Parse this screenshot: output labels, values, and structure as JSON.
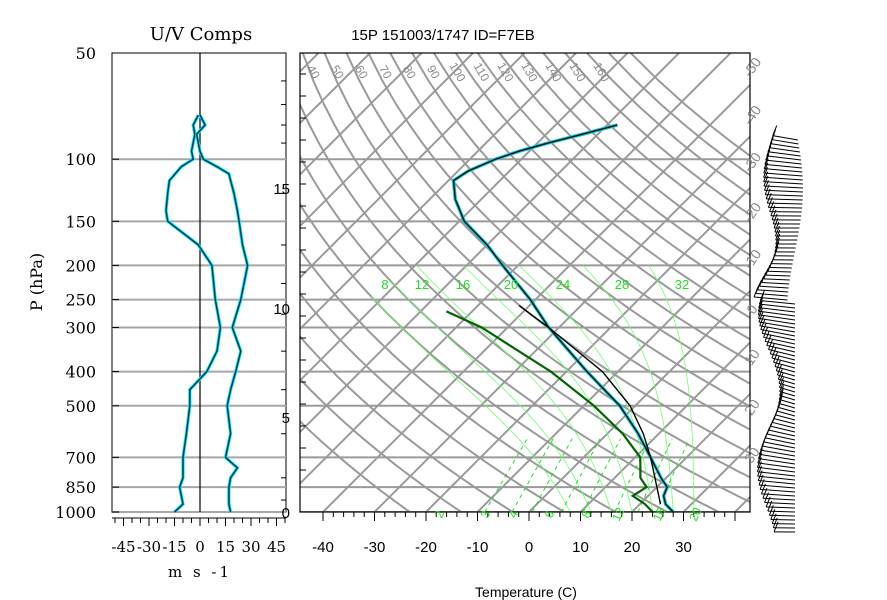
{
  "chart_data": [
    {
      "type": "line",
      "title": "U/V Comps",
      "ylabel": "P (hPa)",
      "xlabel": "m s -1",
      "xticklabels": [
        "-45",
        "-30",
        "-15",
        "0",
        "15",
        "30",
        "45"
      ],
      "xlim": [
        -50,
        50
      ],
      "yticklabels": [
        "50",
        "100",
        "150",
        "200",
        "250",
        "300",
        "400",
        "500",
        "700",
        "850",
        "1000"
      ],
      "yscale": "log",
      "grid": true,
      "series": [
        {
          "kind": "u",
          "color": "#00e5ff",
          "pressure": [
            1000,
            950,
            850,
            800,
            700,
            600,
            500,
            450,
            400,
            350,
            300,
            250,
            200,
            175,
            150,
            140,
            125,
            115,
            105,
            100,
            95,
            85,
            80,
            75
          ],
          "values": [
            -15,
            -10,
            -12,
            -10,
            -10,
            -8,
            -6,
            -6,
            4,
            10,
            12,
            9,
            7,
            -1,
            -19,
            -20,
            -19,
            -18,
            -11,
            -4,
            -5,
            -3,
            -4,
            -1
          ]
        },
        {
          "kind": "v",
          "color": "#00e5ff",
          "pressure": [
            1000,
            950,
            850,
            800,
            750,
            700,
            600,
            500,
            450,
            400,
            350,
            300,
            250,
            200,
            175,
            150,
            140,
            125,
            115,
            110,
            105,
            100,
            95,
            85,
            80,
            75
          ],
          "values": [
            18,
            17,
            17,
            18,
            22,
            15,
            18,
            16,
            18,
            21,
            24,
            19,
            24,
            28,
            25,
            23,
            22,
            20,
            18,
            17,
            10,
            2,
            0,
            -2,
            3,
            0
          ]
        }
      ]
    },
    {
      "type": "line",
      "title": "15P 151003/1747 ID=F7EB",
      "xlabel": "Temperature (C)",
      "xticklabels": [
        "-40",
        "-30",
        "-20",
        "-10",
        "0",
        "10",
        "20",
        "30"
      ],
      "xlim": [
        -43,
        40
      ],
      "yscale": "log",
      "pressure_ticks": [
        "50",
        "100",
        "150",
        "200",
        "250",
        "300",
        "400",
        "500",
        "700",
        "850",
        "1000"
      ],
      "height_labels": [
        "0",
        "5",
        "10",
        "15"
      ],
      "potential_temperature_labels": [
        "40",
        "50",
        "60",
        "70",
        "80",
        "90",
        "100",
        "110",
        "120",
        "130",
        "140",
        "150",
        "160"
      ],
      "temperature_labels": [
        "-50",
        "-40",
        "-30",
        "-20",
        "-10",
        "0",
        "10",
        "20",
        "30"
      ],
      "mixing_ratio_labels": [
        "2",
        "3",
        "4",
        "6",
        "8",
        "12",
        "16",
        "20"
      ],
      "wet_bulb_labels": [
        "8",
        "12",
        "16",
        "20",
        "24",
        "28",
        "32"
      ],
      "grid": true,
      "series": [
        {
          "name": "",
          "kind": "temperature",
          "color": "#000000",
          "pressure": [
            1000,
            950,
            900,
            850,
            800,
            700,
            600,
            500,
            400,
            300,
            250,
            200,
            175,
            150,
            130,
            115,
            108,
            100,
            95,
            90,
            85,
            80
          ],
          "values": [
            28,
            25,
            23,
            22,
            19,
            13,
            6,
            -3,
            -16,
            -32,
            -41,
            -53,
            -60,
            -69,
            -75,
            -79,
            -78,
            -75,
            -72,
            -68,
            -63,
            -58
          ]
        },
        {
          "name": "",
          "kind": "dewpoint",
          "color": "#006400",
          "pressure": [
            1000,
            950,
            900,
            850,
            800,
            700,
            600,
            500,
            400,
            300,
            270
          ],
          "values": [
            24,
            21,
            17,
            18,
            15,
            11,
            3,
            -8,
            -23,
            -45,
            -55
          ]
        },
        {
          "name": "",
          "kind": "parcel",
          "color": "#000000",
          "pressure": [
            950,
            850,
            700,
            600,
            500,
            400,
            300,
            260
          ],
          "values": [
            24,
            20,
            13,
            7,
            -1,
            -13,
            -32,
            -42
          ]
        }
      ]
    }
  ]
}
